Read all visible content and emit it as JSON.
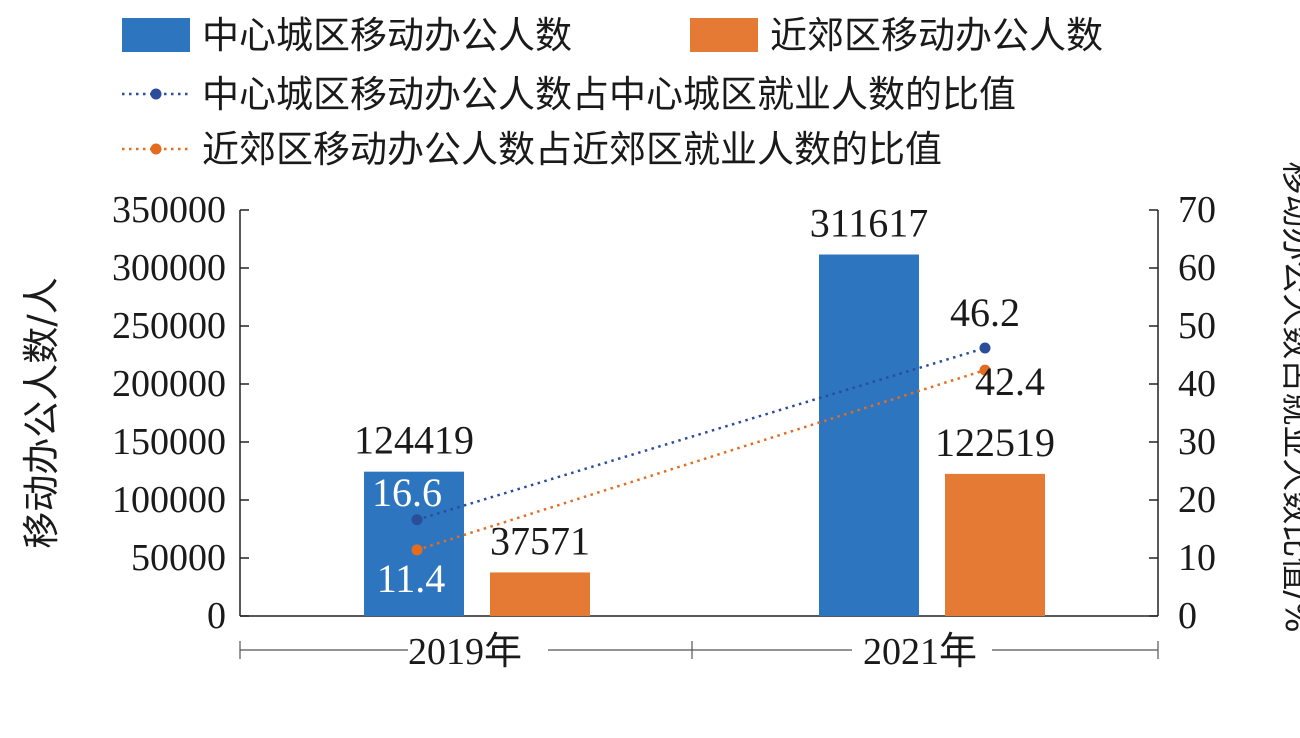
{
  "chart_data": {
    "type": "bar",
    "categories": [
      "2019年",
      "2021年"
    ],
    "series": [
      {
        "name": "中心城区移动办公人数",
        "kind": "bar",
        "axis": "left",
        "color": "#2e75c0",
        "values": [
          124419,
          311617
        ],
        "labels": [
          "124419",
          "311617"
        ]
      },
      {
        "name": "近郊区移动办公人数",
        "kind": "bar",
        "axis": "left",
        "color": "#e57a34",
        "values": [
          37571,
          122519
        ],
        "labels": [
          "37571",
          "122519"
        ]
      },
      {
        "name": "中心城区移动办公人数占中心城区就业人数的比值",
        "kind": "line",
        "style": "dotted",
        "axis": "right",
        "color": "#2b4d9a",
        "values": [
          16.6,
          46.2
        ],
        "labels": [
          "16.6",
          "46.2"
        ]
      },
      {
        "name": "近郊区移动办公人数占近郊区就业人数的比值",
        "kind": "line",
        "style": "dotted",
        "axis": "right",
        "color": "#e46c1f",
        "values": [
          11.4,
          42.4
        ],
        "labels": [
          "11.4",
          "42.4"
        ]
      }
    ],
    "ylabel": "移动办公人数/人",
    "y2label": "移动办公人数占就业人数比值/%",
    "ylim": [
      0,
      350000
    ],
    "y2lim": [
      0,
      70
    ],
    "yticks": [
      "0",
      "50000",
      "100000",
      "150000",
      "200000",
      "250000",
      "300000",
      "350000"
    ],
    "y2ticks": [
      "0",
      "10",
      "20",
      "30",
      "40",
      "50",
      "60",
      "70"
    ],
    "grid": false,
    "legend_position": "top"
  }
}
